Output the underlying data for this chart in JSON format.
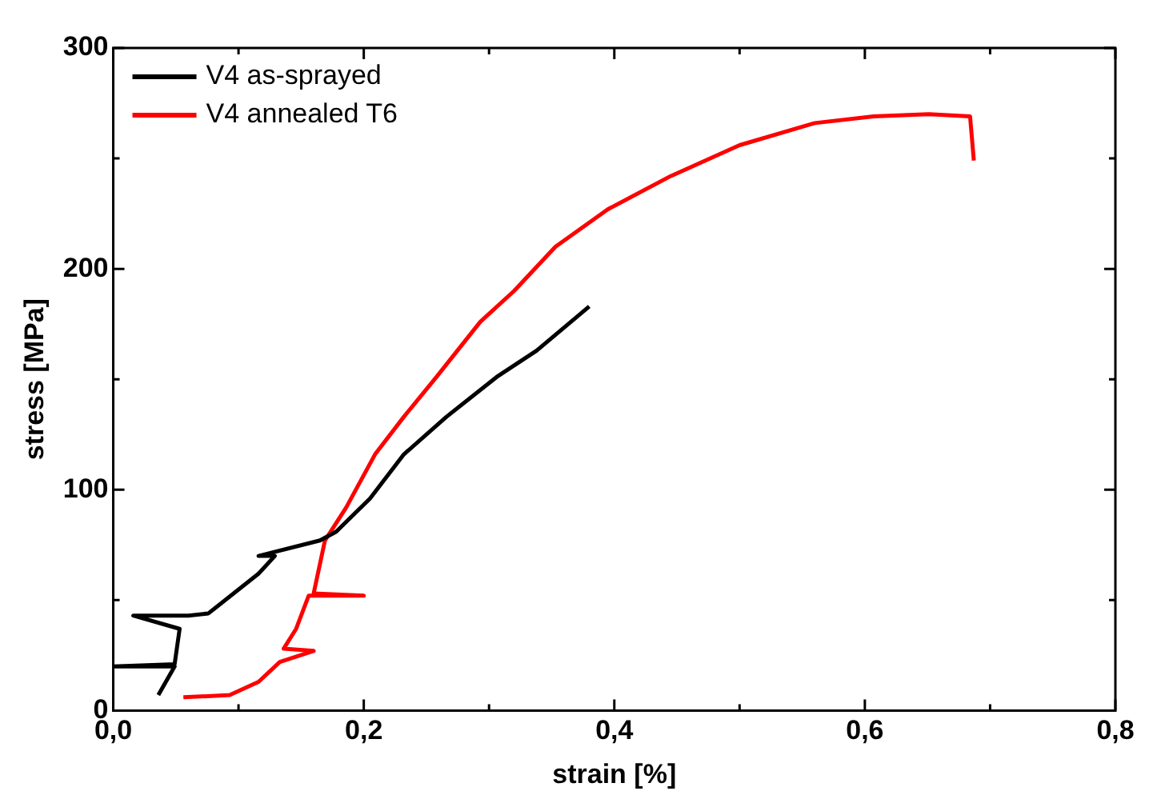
{
  "chart_data": {
    "type": "line",
    "xlabel": "strain [%]",
    "ylabel": "stress [MPa]",
    "xlim": [
      0,
      0.8
    ],
    "ylim": [
      0,
      300
    ],
    "xticks": [
      {
        "value": 0,
        "label": "0,0"
      },
      {
        "value": 0.1,
        "label": null
      },
      {
        "value": 0.2,
        "label": "0,2"
      },
      {
        "value": 0.3,
        "label": null
      },
      {
        "value": 0.4,
        "label": "0,4"
      },
      {
        "value": 0.5,
        "label": null
      },
      {
        "value": 0.6,
        "label": "0,6"
      },
      {
        "value": 0.7,
        "label": null
      },
      {
        "value": 0.8,
        "label": "0,8"
      }
    ],
    "yticks": [
      0,
      {
        "value": 50,
        "label": null
      },
      100,
      {
        "value": 150,
        "label": null
      },
      200,
      {
        "value": 250,
        "label": null
      },
      300
    ],
    "grid": false,
    "legend": "top left",
    "marker": "none",
    "line_style": "solid",
    "series": [
      {
        "name": "V4 as-sprayed",
        "color": "#000000",
        "x": [
          0.036,
          0.049,
          0.0,
          0.049,
          0.053,
          0.016,
          0.06,
          0.076,
          0.116,
          0.129,
          0.116,
          0.165,
          0.178,
          0.205,
          0.232,
          0.266,
          0.306,
          0.338,
          0.38
        ],
        "values": [
          7,
          20,
          20,
          21,
          37,
          43,
          43,
          44,
          62,
          70,
          70,
          77,
          81,
          96,
          116,
          133,
          151,
          163,
          183
        ]
      },
      {
        "name": "V4 annealed T6",
        "color": "#ff0000",
        "x": [
          0.056,
          0.093,
          0.116,
          0.133,
          0.16,
          0.136,
          0.146,
          0.156,
          0.2,
          0.16,
          0.169,
          0.186,
          0.209,
          0.232,
          0.258,
          0.293,
          0.32,
          0.353,
          0.395,
          0.445,
          0.5,
          0.56,
          0.607,
          0.651,
          0.684,
          0.687
        ],
        "values": [
          6,
          7,
          13,
          22,
          27,
          28,
          37,
          52,
          52,
          53,
          77,
          92,
          116,
          133,
          151,
          176,
          190,
          210,
          227,
          242,
          256,
          266,
          269,
          270,
          269,
          249
        ]
      }
    ]
  }
}
